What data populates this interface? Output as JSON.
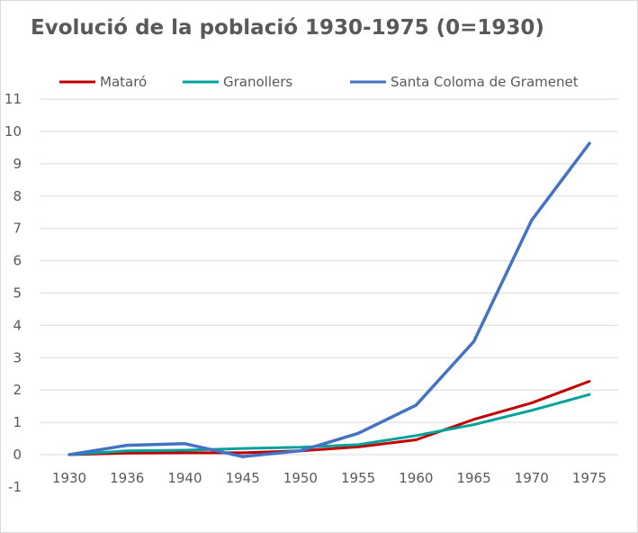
{
  "chart_data": {
    "type": "line",
    "title": "Evolució de la població 1930-1975 (0=1930)",
    "xlabel": "",
    "ylabel": "",
    "categories": [
      "1930",
      "1936",
      "1940",
      "1945",
      "1950",
      "1955",
      "1960",
      "1965",
      "1970",
      "1975"
    ],
    "ylim": [
      -1,
      11
    ],
    "yticks": [
      -1,
      0,
      1,
      2,
      3,
      4,
      5,
      6,
      7,
      8,
      9,
      10,
      11
    ],
    "grid": true,
    "legend_position": "top",
    "series": [
      {
        "name": "Mataró",
        "color": "#c00000",
        "values": [
          0,
          0.05,
          0.06,
          0.06,
          0.12,
          0.24,
          0.46,
          1.09,
          1.6,
          2.27
        ]
      },
      {
        "name": "Granollers",
        "color": "#00a19a",
        "values": [
          0,
          0.12,
          0.14,
          0.19,
          0.23,
          0.31,
          0.59,
          0.93,
          1.37,
          1.86
        ]
      },
      {
        "name": "Santa Coloma de Gramenet",
        "color": "#4472c4",
        "values": [
          0,
          0.29,
          0.34,
          -0.06,
          0.12,
          0.66,
          1.53,
          3.5,
          7.25,
          9.63
        ]
      }
    ]
  }
}
